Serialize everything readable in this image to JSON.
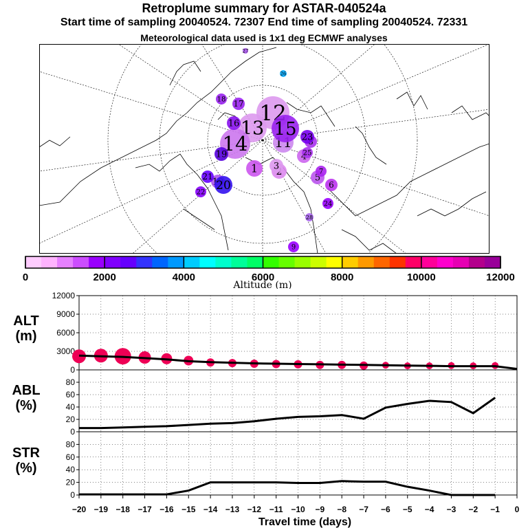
{
  "header": {
    "title": "Retroplume summary for ASTAR-040524a",
    "line2": "Start time of sampling 20040524. 72307     End time of sampling 20040524. 72331",
    "line3": "Meteorological data used is 1x1 deg ECMWF analyses"
  },
  "colorbar": {
    "label": "Altitude (m)",
    "ticks": [
      "0",
      "2000",
      "4000",
      "6000",
      "8000",
      "10000",
      "12000"
    ],
    "colors": [
      "#ffccff",
      "#ffb3ff",
      "#e680ff",
      "#cc4dff",
      "#9900ff",
      "#8000ff",
      "#6600ff",
      "#3333ff",
      "#0066ff",
      "#0099ff",
      "#00ccff",
      "#00ffff",
      "#00ffcc",
      "#00ff99",
      "#00ff66",
      "#33ff00",
      "#66ff00",
      "#99ff00",
      "#ccff00",
      "#ffff00",
      "#ffcc00",
      "#ff9900",
      "#ff6600",
      "#ff3300",
      "#ff0066",
      "#ff0099",
      "#ff00cc",
      "#e600b3",
      "#b3008c",
      "#990099"
    ]
  },
  "map": {
    "labels": [
      {
        "t": "1",
        "c": "#cc55ee"
      },
      {
        "t": "2",
        "c": "#dd88ee"
      },
      {
        "t": "3",
        "c": "#dd99ee"
      },
      {
        "t": "4",
        "c": "#cc66ee"
      },
      {
        "t": "5",
        "c": "#bb55ee"
      },
      {
        "t": "6",
        "c": "#bb33ee"
      },
      {
        "t": "7",
        "c": "#aa22ee"
      },
      {
        "t": "8",
        "c": "#aa33ee"
      },
      {
        "t": "9",
        "c": "#9900ff"
      },
      {
        "t": "10",
        "c": "#aa55ee"
      },
      {
        "t": "11",
        "c": "#cc88ee"
      },
      {
        "t": "12",
        "c": "#dd99ee"
      },
      {
        "t": "13",
        "c": "#dd99ee"
      },
      {
        "t": "14",
        "c": "#cc77ee"
      },
      {
        "t": "15",
        "c": "#9922ee"
      },
      {
        "t": "16",
        "c": "#8811ee"
      },
      {
        "t": "17",
        "c": "#9922ee"
      },
      {
        "t": "18",
        "c": "#9922ee"
      },
      {
        "t": "19",
        "c": "#5500dd"
      },
      {
        "t": "20",
        "c": "#3311ee"
      },
      {
        "t": "21",
        "c": "#6600ff"
      },
      {
        "t": "22",
        "c": "#8800ff"
      },
      {
        "t": "23",
        "c": "#7700ee"
      },
      {
        "t": "24",
        "c": "#9900ff"
      },
      {
        "t": "25",
        "c": "#aa33ee"
      },
      {
        "t": "26",
        "c": "#00aaff"
      },
      {
        "t": "27",
        "c": "#aa55ee"
      },
      {
        "t": "28",
        "c": "#aa66ee"
      }
    ]
  },
  "chart_data": [
    {
      "type": "scatter",
      "panel_label": "ALT",
      "unit_label": "(m)",
      "ylim": [
        0,
        12000
      ],
      "yticks": [
        0,
        3000,
        6000,
        9000,
        12000
      ],
      "xlim": [
        -20,
        0
      ],
      "line": {
        "x": [
          -20,
          -19,
          -18,
          -17,
          -16,
          -15,
          -14,
          -13,
          -12,
          -11,
          -10,
          -9,
          -8,
          -7,
          -6,
          -5,
          -4,
          -3,
          -2,
          -1,
          0
        ],
        "y": [
          2300,
          2200,
          2100,
          1900,
          1700,
          1400,
          1250,
          1150,
          1050,
          1000,
          950,
          900,
          850,
          800,
          750,
          700,
          650,
          600,
          600,
          600,
          150
        ]
      },
      "points": {
        "x": [
          -20,
          -19,
          -18,
          -17,
          -16,
          -15,
          -14,
          -13,
          -12,
          -11,
          -10,
          -9,
          -8,
          -7,
          -6,
          -5,
          -4,
          -3,
          -2,
          -1
        ],
        "y": [
          2200,
          2300,
          2200,
          2000,
          1800,
          1500,
          1200,
          1100,
          1000,
          950,
          900,
          800,
          800,
          700,
          750,
          650,
          650,
          700,
          650,
          700
        ],
        "size": [
          10,
          10,
          12,
          9,
          8,
          7,
          6,
          6,
          6,
          6,
          6,
          6,
          6,
          6,
          5,
          5,
          5,
          5,
          5,
          5
        ]
      }
    },
    {
      "type": "line",
      "panel_label": "ABL",
      "unit_label": "(%)",
      "ylim": [
        0,
        100
      ],
      "yticks": [
        0,
        20,
        40,
        60,
        80
      ],
      "x": [
        -20,
        -19,
        -18,
        -17,
        -16,
        -15,
        -14,
        -13,
        -12,
        -11,
        -10,
        -9,
        -8,
        -7,
        -6,
        -5,
        -4,
        -3,
        -2,
        -1
      ],
      "y": [
        6,
        6,
        7,
        8,
        9,
        11,
        13,
        14,
        17,
        21,
        24,
        25,
        27,
        21,
        39,
        45,
        50,
        48,
        30,
        55
      ]
    },
    {
      "type": "line",
      "panel_label": "STR",
      "unit_label": "(%)",
      "ylim": [
        0,
        100
      ],
      "yticks": [
        0,
        20,
        40,
        60,
        80
      ],
      "x": [
        -20,
        -19,
        -18,
        -17,
        -16,
        -15,
        -14,
        -13,
        -12,
        -11,
        -10,
        -9,
        -8,
        -7,
        -6,
        -5,
        -4,
        -3,
        -2,
        -1
      ],
      "y": [
        1,
        1,
        1,
        1,
        1,
        7,
        20,
        20,
        20,
        20,
        19,
        19,
        22,
        21,
        21,
        13,
        7,
        0,
        0,
        0
      ]
    }
  ],
  "xaxis": {
    "label": "Travel time (days)",
    "ticks": [
      "−20",
      "−19",
      "−18",
      "−17",
      "−16",
      "−15",
      "−14",
      "−13",
      "−12",
      "−11",
      "−10",
      "−9",
      "−8",
      "−7",
      "−6",
      "−5",
      "−4",
      "−3",
      "−2",
      "−1",
      "0"
    ]
  }
}
